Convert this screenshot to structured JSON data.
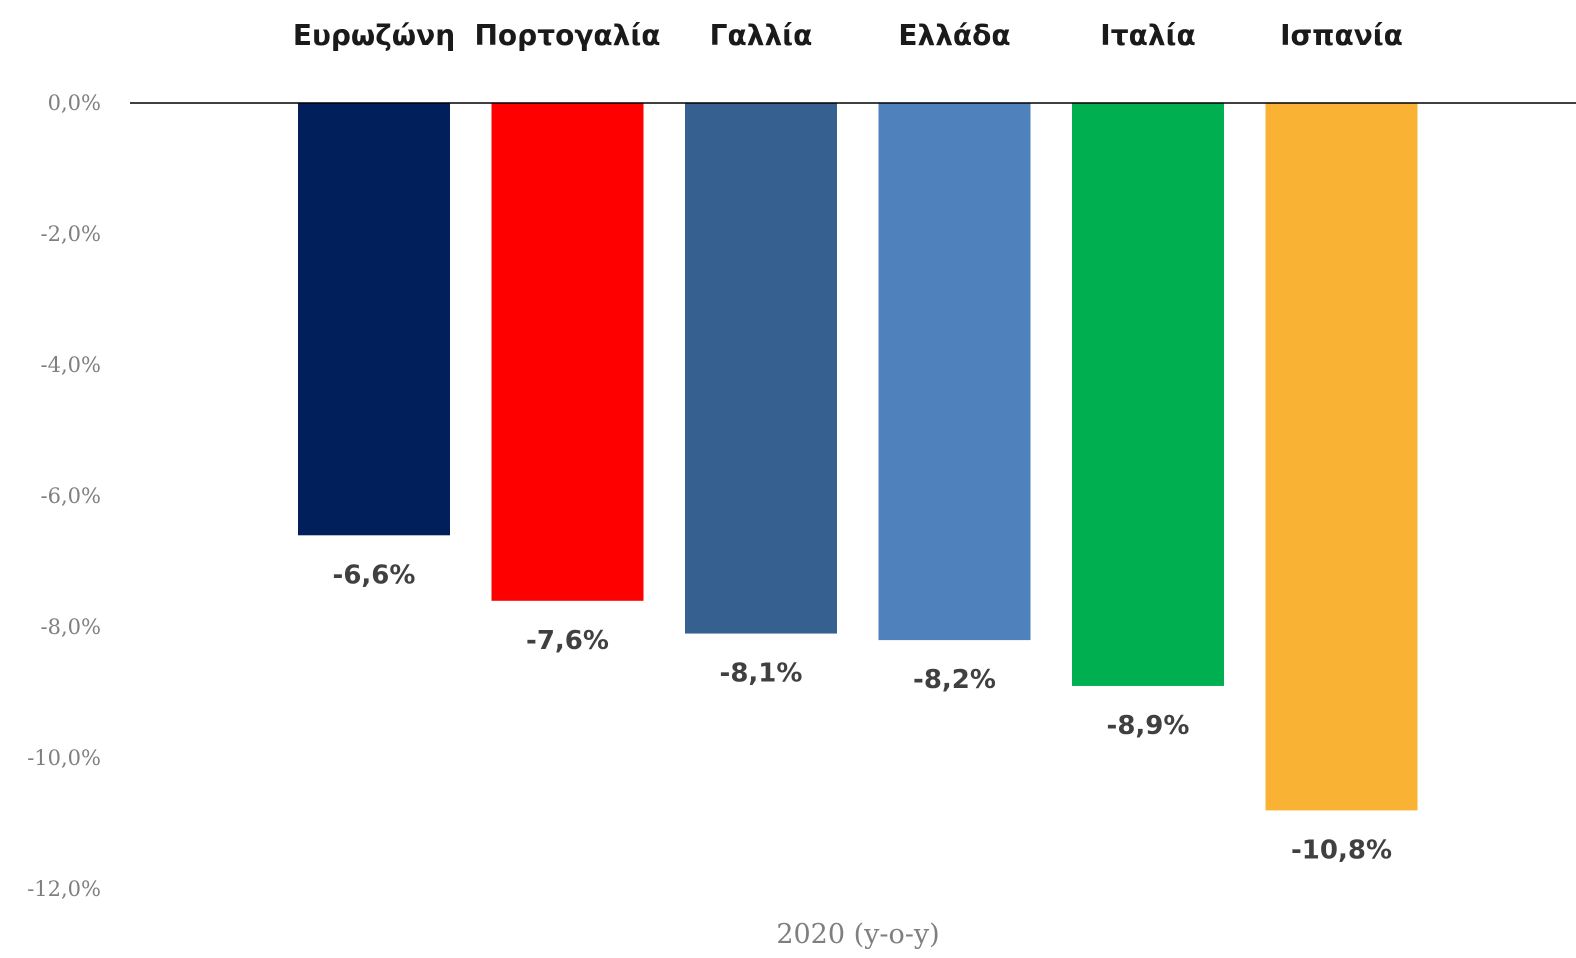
{
  "chart_data": {
    "type": "bar",
    "orientation": "vertical",
    "categories": [
      "Ευρωζώνη",
      "Πορτογαλία",
      "Γαλλία",
      "Ελλάδα",
      "Ιταλία",
      "Ισπανία"
    ],
    "values": [
      -6.6,
      -7.6,
      -8.1,
      -8.2,
      -8.9,
      -10.8
    ],
    "data_labels": [
      "-6,6%",
      "-7,6%",
      "-8,1%",
      "-8,2%",
      "-8,9%",
      "-10,8%"
    ],
    "colors": [
      "#001f5b",
      "#ff0000",
      "#35608f",
      "#4f81bd",
      "#00b050",
      "#f9b233"
    ],
    "yticks": [
      0,
      -2,
      -4,
      -6,
      -8,
      -10,
      -12
    ],
    "ytick_labels": [
      "0,0%",
      "-2,0%",
      "-4,0%",
      "-6,0%",
      "-8,0%",
      "-10,0%",
      "-12,0%"
    ],
    "ylim": [
      -12,
      0
    ],
    "xlabel": "2020 (y-o-y)",
    "ylabel": "",
    "title": "",
    "category_labels_position": "top",
    "grid": false,
    "legend": "none"
  }
}
